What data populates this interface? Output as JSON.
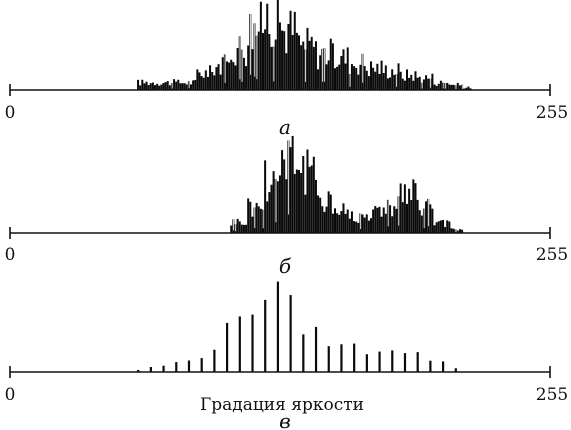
{
  "chart_data": [
    {
      "type": "bar",
      "panel_label": "а",
      "xlabel": "",
      "xlim": [
        0,
        255
      ],
      "x_tick_labels": [
        "0",
        "255"
      ],
      "x": [
        [
          60,
          88,
          3
        ],
        [
          88,
          96,
          7
        ],
        [
          96,
          104,
          10
        ],
        [
          104,
          112,
          17
        ],
        [
          112,
          120,
          25
        ],
        [
          120,
          128,
          30
        ],
        [
          128,
          136,
          24
        ],
        [
          136,
          144,
          18
        ],
        [
          144,
          152,
          15
        ],
        [
          152,
          160,
          13
        ],
        [
          160,
          168,
          11
        ],
        [
          168,
          176,
          9
        ],
        [
          176,
          184,
          8
        ],
        [
          184,
          192,
          6
        ],
        [
          192,
          200,
          5
        ],
        [
          200,
          208,
          3
        ],
        [
          208,
          214,
          2
        ],
        [
          214,
          218,
          1
        ]
      ],
      "values_note": "",
      "grid": false
    },
    {
      "type": "bar",
      "panel_label": "б",
      "xlabel": "",
      "xlim": [
        0,
        255
      ],
      "x_tick_labels": [
        "0",
        "255"
      ],
      "x": [
        [
          104,
          112,
          6
        ],
        [
          112,
          120,
          14
        ],
        [
          120,
          128,
          30
        ],
        [
          128,
          136,
          45
        ],
        [
          136,
          144,
          32
        ],
        [
          144,
          152,
          20
        ],
        [
          152,
          160,
          12
        ],
        [
          160,
          168,
          9
        ],
        [
          168,
          176,
          11
        ],
        [
          176,
          184,
          15
        ],
        [
          184,
          192,
          20
        ],
        [
          192,
          200,
          14
        ],
        [
          200,
          208,
          5
        ],
        [
          208,
          214,
          2
        ]
      ],
      "values_note": "",
      "grid": false
    },
    {
      "type": "bar",
      "panel_label": "в",
      "xlabel": "Градация яркости",
      "xlim": [
        0,
        255
      ],
      "x_tick_labels": [
        "0",
        "255"
      ],
      "x": [
        [
          60,
          64,
          1
        ],
        [
          66,
          70,
          2
        ],
        [
          72,
          76,
          3
        ],
        [
          78,
          82,
          4
        ],
        [
          84,
          88,
          5
        ],
        [
          90,
          94,
          8
        ],
        [
          96,
          100,
          12
        ],
        [
          102,
          106,
          18
        ],
        [
          108,
          112,
          26
        ],
        [
          114,
          118,
          32
        ],
        [
          120,
          124,
          36
        ],
        [
          126,
          130,
          34
        ],
        [
          132,
          136,
          28
        ],
        [
          138,
          142,
          22
        ],
        [
          144,
          148,
          17
        ],
        [
          150,
          154,
          14
        ],
        [
          156,
          160,
          12
        ],
        [
          162,
          166,
          11
        ],
        [
          168,
          172,
          10
        ],
        [
          174,
          178,
          10
        ],
        [
          180,
          184,
          12
        ],
        [
          186,
          190,
          10
        ],
        [
          192,
          196,
          8
        ],
        [
          198,
          202,
          6
        ],
        [
          204,
          208,
          4
        ],
        [
          210,
          214,
          2
        ]
      ],
      "values_note": "",
      "grid": false
    }
  ]
}
